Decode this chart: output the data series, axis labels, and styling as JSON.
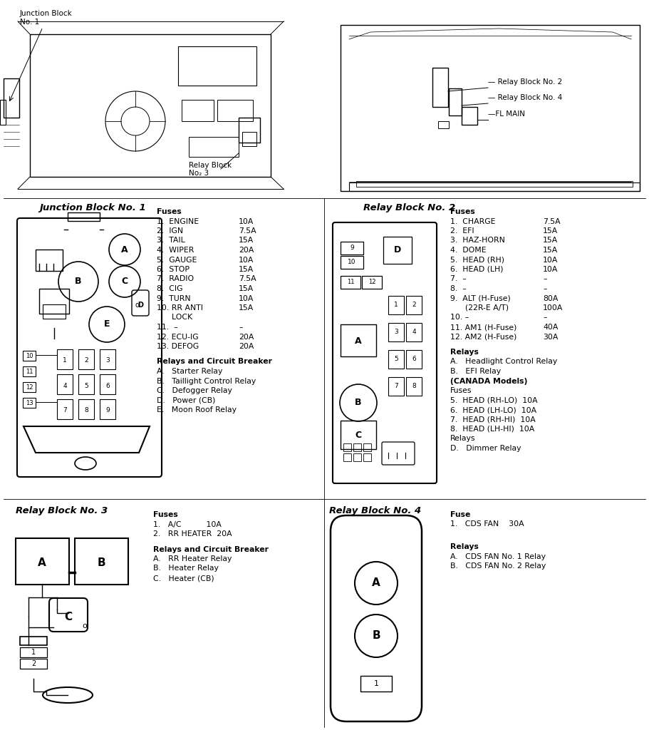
{
  "bg_color": "#ffffff",
  "sections": {
    "junction_block_1_label": "Junction Block No. 1",
    "relay_block_2_label": "Relay Block No. 2",
    "relay_block_3_label": "Relay Block No. 3",
    "relay_block_4_label": "Relay Block No. 4"
  },
  "jb1_fuses_col1": [
    "Fuses",
    "1.  ENGINE",
    "2.  IGN",
    "3.  TAIL",
    "4.  WIPER",
    "5.  GAUGE",
    "6.  STOP",
    "7.  RADIO",
    "8.  CIG",
    "9.  TURN",
    "10. RR ANTI",
    "      LOCK",
    "11.  –",
    "12. ECU-IG",
    "13. DEFOG"
  ],
  "jb1_fuses_col2": [
    "",
    "10A",
    "7.5A",
    "15A",
    "20A",
    "10A",
    "15A",
    "7.5A",
    "15A",
    "10A",
    "15A",
    "",
    "–",
    "20A",
    "20A"
  ],
  "jb1_relays": [
    "Relays and Circuit Breaker",
    "A.   Starter Relay",
    "B.   Taillight Control Relay",
    "C.   Defogger Relay",
    "D.   Power (CB)",
    "E.   Moon Roof Relay"
  ],
  "rb2_fuses_col1": [
    "Fuses",
    "1.  CHARGE",
    "2.  EFI",
    "3.  HAZ-HORN",
    "4.  DOME",
    "5.  HEAD (RH)",
    "6.  HEAD (LH)",
    "7.  –",
    "8.  –",
    "9.  ALT (H-Fuse)",
    "      (22R-E A/T)",
    "10. –",
    "11. AM1 (H-Fuse)",
    "12. AM2 (H-Fuse)"
  ],
  "rb2_fuses_col2": [
    "",
    "7.5A",
    "15A",
    "15A",
    "15A",
    "10A",
    "10A",
    "–",
    "–",
    "80A",
    "100A",
    "–",
    "40A",
    "30A"
  ],
  "rb2_relays": [
    "Relays",
    "A.   Headlight Control Relay",
    "B.   EFI Relay",
    "(CANADA Models)",
    "Fuses",
    "5.  HEAD (RH-LO)  10A",
    "6.  HEAD (LH-LO)  10A",
    "7.  HEAD (RH-HI)  10A",
    "8.  HEAD (LH-HI)  10A",
    "Relays",
    "D.   Dimmer Relay"
  ],
  "rb3_fuses": [
    "Fuses",
    "1.   A/C          10A",
    "2.   RR HEATER  20A"
  ],
  "rb3_relays": [
    "Relays and Circuit Breaker",
    "A.   RR Heater Relay",
    "B.   Heater Relay",
    "C.   Heater (CB)"
  ],
  "rb4_fuse": [
    "Fuse",
    "1.   CDS FAN    30A"
  ],
  "rb4_relays": [
    "Relays",
    "A.   CDS FAN No. 1 Relay",
    "B.   CDS FAN No. 2 Relay"
  ]
}
